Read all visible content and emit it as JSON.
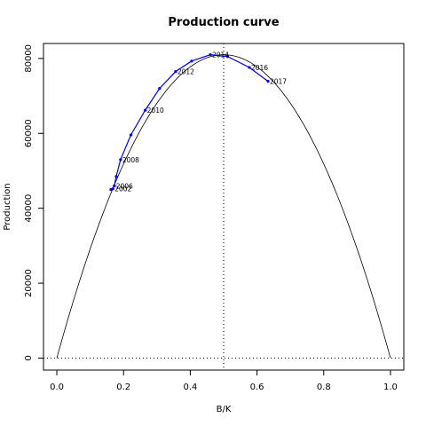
{
  "chart_data": {
    "type": "line",
    "title": "Production curve",
    "xlabel": "B/K",
    "ylabel": "Production",
    "xlim": [
      -0.04,
      1.04
    ],
    "ylim": [
      -3200,
      84000
    ],
    "x_ticks": [
      0.0,
      0.2,
      0.4,
      0.6,
      0.8,
      1.0
    ],
    "x_tick_labels": [
      "0.0",
      "0.2",
      "0.4",
      "0.6",
      "0.8",
      "1.0"
    ],
    "y_ticks": [
      0,
      20000,
      40000,
      60000,
      80000
    ],
    "y_tick_labels": [
      "0",
      "20000",
      "40000",
      "60000",
      "80000"
    ],
    "curve": {
      "type": "parabola",
      "r_k_over_4": 81000,
      "x_range": [
        0,
        1
      ]
    },
    "reference_lines": {
      "vertical_x": 0.5,
      "horizontal_y": 0,
      "style": "dotted"
    },
    "series": [
      {
        "x": [
          0.162,
          0.168,
          0.172,
          0.178,
          0.191,
          0.222,
          0.265,
          0.308,
          0.356,
          0.404,
          0.46,
          0.512,
          0.577,
          0.633
        ],
        "y": [
          45000,
          45200,
          46000,
          48500,
          53000,
          59600,
          66200,
          72000,
          76500,
          79300,
          81000,
          80500,
          77600,
          73900
        ],
        "color": "#0000ff"
      }
    ],
    "point_labels": [
      {
        "text": "2002",
        "x": 0.168,
        "y": 45200
      },
      {
        "text": "2006",
        "x": 0.172,
        "y": 46000
      },
      {
        "text": "2008",
        "x": 0.191,
        "y": 53000
      },
      {
        "text": "2010",
        "x": 0.265,
        "y": 66200
      },
      {
        "text": "2012",
        "x": 0.356,
        "y": 76500
      },
      {
        "text": "2014",
        "x": 0.46,
        "y": 81000
      },
      {
        "text": "2016",
        "x": 0.577,
        "y": 77600
      },
      {
        "text": "2017",
        "x": 0.633,
        "y": 73900
      }
    ],
    "colors": {
      "curve": "#000000",
      "series": "#0000ff",
      "reference": "#000000"
    }
  }
}
